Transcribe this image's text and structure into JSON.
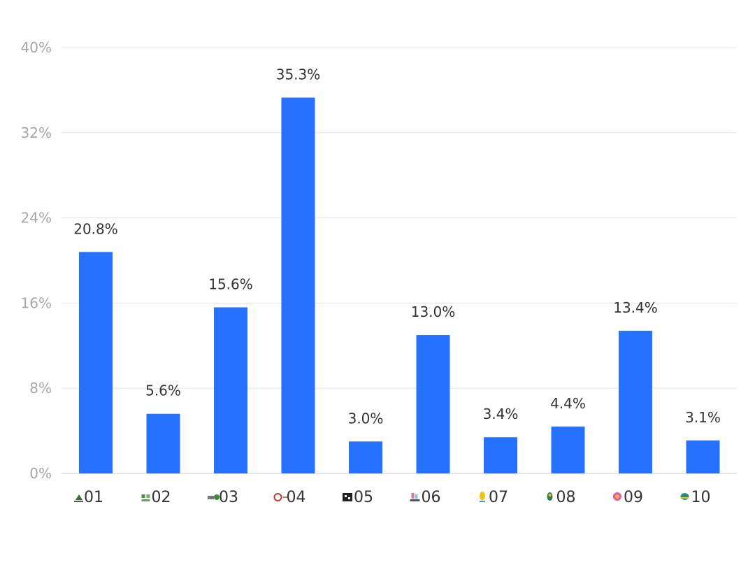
{
  "chart_data": {
    "type": "bar",
    "title": "",
    "xlabel": "",
    "ylabel": "",
    "ylim": [
      0,
      40
    ],
    "y_ticks": [
      "0%",
      "8%",
      "16%",
      "24%",
      "32%",
      "40%"
    ],
    "y_tick_values": [
      0,
      8,
      16,
      24,
      32,
      40
    ],
    "categories": [
      "01",
      "02",
      "03",
      "04",
      "05",
      "06",
      "07",
      "08",
      "09",
      "10"
    ],
    "values": [
      20.8,
      5.6,
      15.6,
      35.3,
      3.0,
      13.0,
      3.4,
      4.4,
      13.4,
      3.1
    ],
    "value_labels": [
      "20.8%",
      "5.6%",
      "15.6%",
      "35.3%",
      "3.0%",
      "13.0%",
      "3.4%",
      "4.4%",
      "13.4%",
      "3.1%"
    ],
    "grid": true,
    "legend": "none",
    "bar_color": "#2671ff",
    "grid_color": "#e4e4e4",
    "y_tick_color": "#a6a6a6",
    "x_tick_color": "#333333",
    "category_icons": [
      "logo-01-icon",
      "logo-02-icon",
      "logo-03-icon",
      "logo-04-icon",
      "logo-05-icon",
      "logo-06-icon",
      "logo-07-icon",
      "logo-08-icon",
      "logo-09-icon",
      "logo-10-icon"
    ]
  }
}
